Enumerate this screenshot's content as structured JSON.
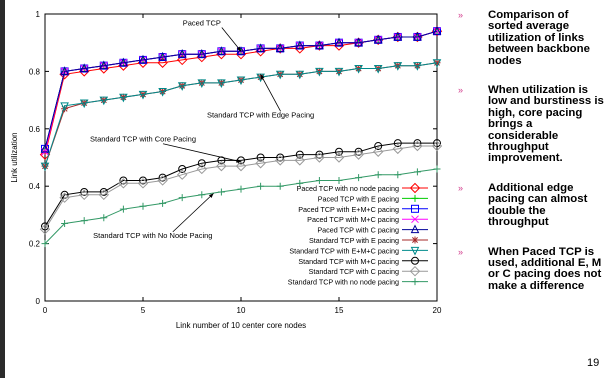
{
  "bullets": [
    "Comparison of sorted average utilization of links between backbone nodes",
    "When utilization is low and burstiness is high, core pacing brings a considerable throughput improvement.",
    "Additional edge pacing can almost double the throughput",
    "When Paced TCP is used, additional E, M or C pacing does not make a difference"
  ],
  "bullet_marker": "»",
  "page_number": "19",
  "chart_data": {
    "type": "line",
    "title": "",
    "xlabel": "Link number of 10 center core nodes",
    "ylabel": "Link utilization",
    "xlim": [
      0,
      20
    ],
    "ylim": [
      0,
      1
    ],
    "xticks": [
      0,
      5,
      10,
      15,
      20
    ],
    "yticks": [
      0,
      0.2,
      0.4,
      0.6,
      0.8,
      1
    ],
    "grid": false,
    "legend_position": "bottom-right",
    "annotations": [
      {
        "text": "Paced TCP",
        "x": 8,
        "y": 0.96,
        "arrow_to": [
          10,
          0.87
        ]
      },
      {
        "text": "Standard TCP with Edge Pacing",
        "x": 11,
        "y": 0.64,
        "arrow_to": [
          11,
          0.79
        ]
      },
      {
        "text": "Standard TCP with Core Pacing",
        "x": 5,
        "y": 0.555,
        "arrow_to": [
          10,
          0.485
        ]
      },
      {
        "text": "Standard TCP with No Node Pacing",
        "x": 5.5,
        "y": 0.22,
        "arrow_to": [
          8.6,
          0.375
        ]
      }
    ],
    "x": [
      0,
      1,
      2,
      3,
      4,
      5,
      6,
      7,
      8,
      9,
      10,
      11,
      12,
      13,
      14,
      15,
      16,
      17,
      18,
      19,
      20
    ],
    "series": [
      {
        "name": "Paced TCP with no node pacing",
        "color": "#ff0000",
        "marker": "diamond",
        "values": [
          0.51,
          0.79,
          0.8,
          0.81,
          0.82,
          0.83,
          0.83,
          0.84,
          0.85,
          0.86,
          0.86,
          0.87,
          0.88,
          0.88,
          0.89,
          0.89,
          0.9,
          0.91,
          0.92,
          0.92,
          0.94
        ]
      },
      {
        "name": "Paced TCP with E pacing",
        "color": "#00cc00",
        "marker": "plus",
        "values": [
          0.53,
          0.8,
          0.81,
          0.82,
          0.83,
          0.84,
          0.85,
          0.86,
          0.86,
          0.87,
          0.87,
          0.88,
          0.88,
          0.89,
          0.89,
          0.9,
          0.9,
          0.91,
          0.92,
          0.92,
          0.94
        ]
      },
      {
        "name": "Paced TCP with E+M+C pacing",
        "color": "#0000ff",
        "marker": "square",
        "values": [
          0.53,
          0.8,
          0.81,
          0.82,
          0.83,
          0.84,
          0.85,
          0.86,
          0.86,
          0.87,
          0.87,
          0.88,
          0.88,
          0.89,
          0.89,
          0.9,
          0.9,
          0.91,
          0.92,
          0.92,
          0.94
        ]
      },
      {
        "name": "Paced TCP with M+C pacing",
        "color": "#ff00ff",
        "marker": "x",
        "values": [
          0.52,
          0.8,
          0.81,
          0.82,
          0.83,
          0.84,
          0.85,
          0.86,
          0.86,
          0.87,
          0.87,
          0.88,
          0.88,
          0.89,
          0.89,
          0.9,
          0.9,
          0.91,
          0.92,
          0.92,
          0.94
        ]
      },
      {
        "name": "Paced TCP with C pacing",
        "color": "#000099",
        "marker": "triangle",
        "values": [
          0.53,
          0.8,
          0.81,
          0.82,
          0.83,
          0.84,
          0.85,
          0.86,
          0.86,
          0.87,
          0.87,
          0.88,
          0.88,
          0.89,
          0.89,
          0.9,
          0.9,
          0.91,
          0.92,
          0.92,
          0.94
        ]
      },
      {
        "name": "Standard TCP with E pacing",
        "color": "#a52a2a",
        "marker": "star",
        "values": [
          0.47,
          0.67,
          0.69,
          0.7,
          0.71,
          0.72,
          0.73,
          0.75,
          0.76,
          0.76,
          0.77,
          0.78,
          0.79,
          0.79,
          0.8,
          0.8,
          0.81,
          0.81,
          0.82,
          0.82,
          0.83
        ]
      },
      {
        "name": "Standard TCP with E+M+C pacing",
        "color": "#008b8b",
        "marker": "triangle-down",
        "values": [
          0.47,
          0.68,
          0.69,
          0.7,
          0.71,
          0.72,
          0.73,
          0.75,
          0.76,
          0.76,
          0.77,
          0.78,
          0.79,
          0.79,
          0.8,
          0.8,
          0.81,
          0.81,
          0.82,
          0.82,
          0.83
        ]
      },
      {
        "name": "Standard TCP with M+C pacing",
        "color": "#000000",
        "marker": "circle",
        "values": [
          0.26,
          0.37,
          0.38,
          0.38,
          0.42,
          0.42,
          0.43,
          0.46,
          0.48,
          0.49,
          0.49,
          0.5,
          0.5,
          0.51,
          0.51,
          0.52,
          0.52,
          0.54,
          0.55,
          0.55,
          0.55
        ]
      },
      {
        "name": "Standard TCP with C pacing",
        "color": "#999999",
        "marker": "diamond",
        "values": [
          0.25,
          0.36,
          0.37,
          0.37,
          0.41,
          0.41,
          0.42,
          0.44,
          0.46,
          0.47,
          0.47,
          0.48,
          0.49,
          0.49,
          0.5,
          0.5,
          0.51,
          0.52,
          0.53,
          0.54,
          0.54
        ]
      },
      {
        "name": "Standard TCP with no node pacing",
        "color": "#339966",
        "marker": "plus",
        "values": [
          0.2,
          0.27,
          0.28,
          0.29,
          0.32,
          0.33,
          0.34,
          0.36,
          0.37,
          0.38,
          0.39,
          0.4,
          0.4,
          0.41,
          0.42,
          0.42,
          0.43,
          0.44,
          0.44,
          0.45,
          0.46
        ]
      }
    ]
  }
}
